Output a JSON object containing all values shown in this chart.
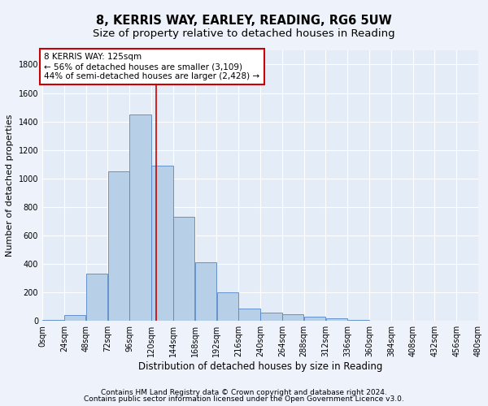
{
  "title1": "8, KERRIS WAY, EARLEY, READING, RG6 5UW",
  "title2": "Size of property relative to detached houses in Reading",
  "xlabel": "Distribution of detached houses by size in Reading",
  "ylabel": "Number of detached properties",
  "bar_values": [
    10,
    40,
    330,
    1050,
    1450,
    1090,
    730,
    410,
    200,
    90,
    60,
    50,
    30,
    20,
    10,
    5,
    5,
    5,
    0,
    0
  ],
  "bin_edges": [
    0,
    24,
    48,
    72,
    96,
    120,
    144,
    168,
    192,
    216,
    240,
    264,
    288,
    312,
    336,
    360,
    384,
    408,
    432,
    456,
    480
  ],
  "tick_labels": [
    "0sqm",
    "24sqm",
    "48sqm",
    "72sqm",
    "96sqm",
    "120sqm",
    "144sqm",
    "168sqm",
    "192sqm",
    "216sqm",
    "240sqm",
    "264sqm",
    "288sqm",
    "312sqm",
    "336sqm",
    "360sqm",
    "384sqm",
    "408sqm",
    "432sqm",
    "456sqm",
    "480sqm"
  ],
  "bar_facecolor": "#b8cfe8",
  "bar_edgecolor": "#5585c5",
  "vline_x": 125,
  "vline_color": "#cc0000",
  "annotation_title": "8 KERRIS WAY: 125sqm",
  "annotation_line1": "← 56% of detached houses are smaller (3,109)",
  "annotation_line2": "44% of semi-detached houses are larger (2,428) →",
  "annotation_box_facecolor": "#ffffff",
  "annotation_box_edgecolor": "#cc0000",
  "ylim": [
    0,
    1900
  ],
  "yticks": [
    0,
    200,
    400,
    600,
    800,
    1000,
    1200,
    1400,
    1600,
    1800
  ],
  "background_color": "#eef2fa",
  "plot_background": "#e4ecf7",
  "grid_color": "#ffffff",
  "footer1": "Contains HM Land Registry data © Crown copyright and database right 2024.",
  "footer2": "Contains public sector information licensed under the Open Government Licence v3.0.",
  "title1_fontsize": 10.5,
  "title2_fontsize": 9.5,
  "xlabel_fontsize": 8.5,
  "ylabel_fontsize": 8,
  "tick_fontsize": 7,
  "annotation_fontsize": 7.5,
  "footer_fontsize": 6.5
}
